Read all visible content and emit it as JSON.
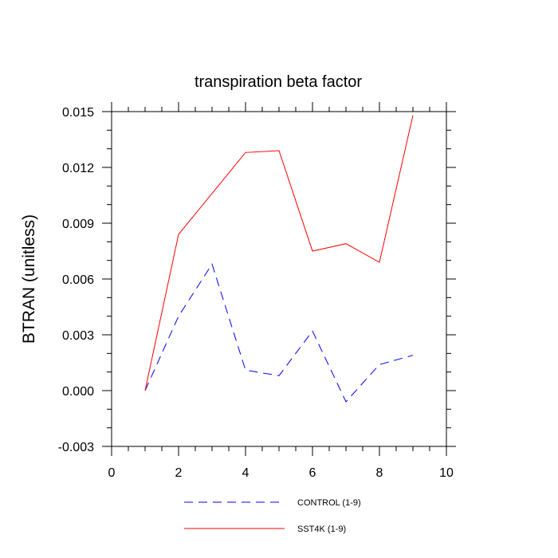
{
  "chart_data": {
    "type": "line",
    "title": "transpiration beta factor",
    "xlabel": "",
    "ylabel": "BTRAN  (unitless)",
    "xlim": [
      0,
      10
    ],
    "ylim": [
      -0.003,
      0.015
    ],
    "xticks": [
      "0",
      "2",
      "4",
      "6",
      "8",
      "10"
    ],
    "xtick_values": [
      0,
      2,
      4,
      6,
      8,
      10
    ],
    "yticks": [
      "-0.003",
      "0.000",
      "0.003",
      "0.006",
      "0.009",
      "0.012",
      "0.015"
    ],
    "ytick_values": [
      -0.003,
      0,
      0.003,
      0.006,
      0.009,
      0.012,
      0.015
    ],
    "grid": false,
    "legend_position": "bottom",
    "series": [
      {
        "name": "CONTROL (1-9)",
        "color": "#0000ff",
        "dash": "dashed",
        "x": [
          1,
          2,
          3,
          4,
          5,
          6,
          7,
          8,
          9
        ],
        "y": [
          0.0,
          0.004,
          0.0068,
          0.0011,
          0.0008,
          0.0032,
          -0.0006,
          0.0014,
          0.0019
        ]
      },
      {
        "name": "SST4K (1-9)",
        "color": "#ff0000",
        "dash": "solid",
        "x": [
          1,
          2,
          3,
          4,
          5,
          6,
          7,
          8,
          9
        ],
        "y": [
          0.0,
          0.0084,
          0.0106,
          0.0128,
          0.0129,
          0.0075,
          0.0079,
          0.0069,
          0.0148
        ]
      }
    ]
  }
}
